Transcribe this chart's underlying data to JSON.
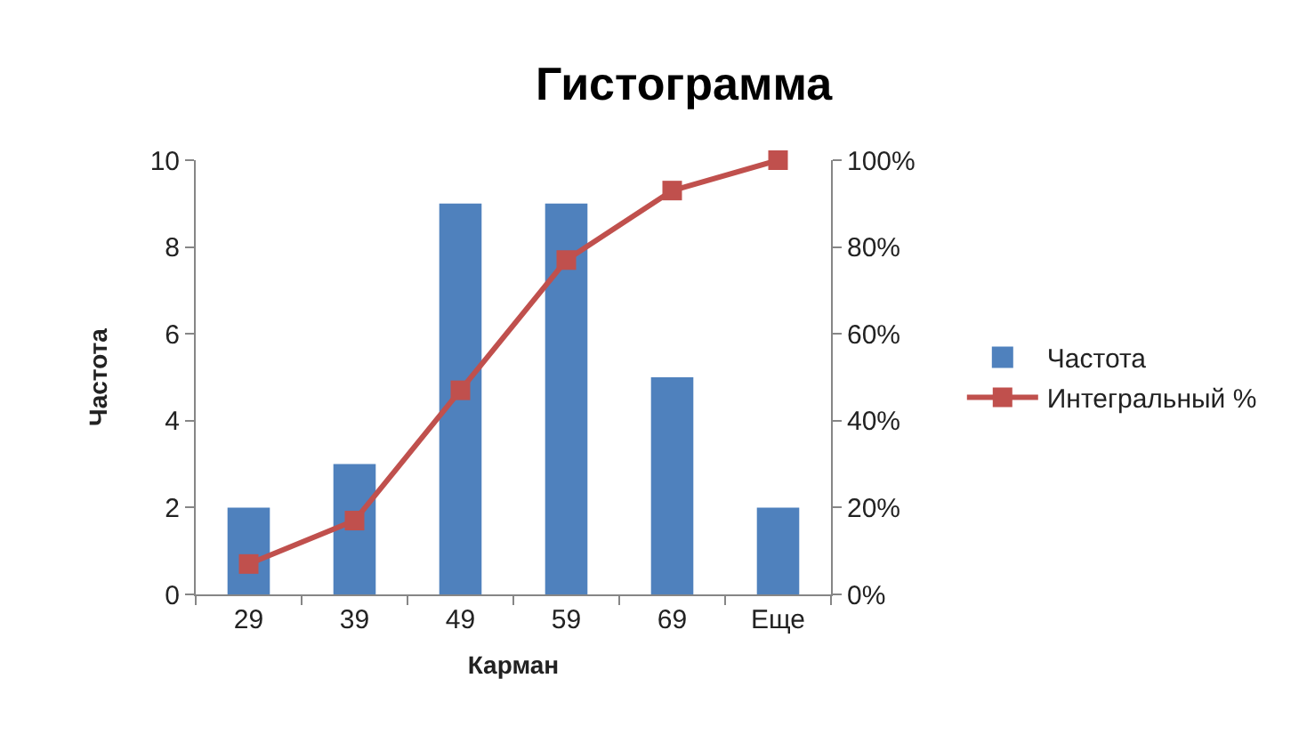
{
  "chart_data": {
    "type": "bar",
    "title": "Гистограмма",
    "xlabel": "Карман",
    "ylabel": "Частота",
    "categories": [
      "29",
      "39",
      "49",
      "59",
      "69",
      "Еще"
    ],
    "series": [
      {
        "name": "Частота",
        "color": "#4f81bd",
        "values": [
          2,
          3,
          9,
          9,
          5,
          2
        ]
      },
      {
        "name": "Интегральный %",
        "type": "line",
        "axis": "y2",
        "color": "#c0504d",
        "values": [
          7,
          17,
          47,
          77,
          93,
          100
        ]
      }
    ],
    "ylim": [
      0,
      10
    ],
    "yticks": [
      0,
      2,
      4,
      6,
      8,
      10
    ],
    "y2lim": [
      0,
      100
    ],
    "y2ticks": [
      {
        "value": 0,
        "label": "0%"
      },
      {
        "value": 20,
        "label": "20%"
      },
      {
        "value": 40,
        "label": "40%"
      },
      {
        "value": 60,
        "label": "60%"
      },
      {
        "value": 80,
        "label": "80%"
      },
      {
        "value": 100,
        "label": "100%"
      }
    ],
    "legend": "right",
    "marker": "square"
  }
}
